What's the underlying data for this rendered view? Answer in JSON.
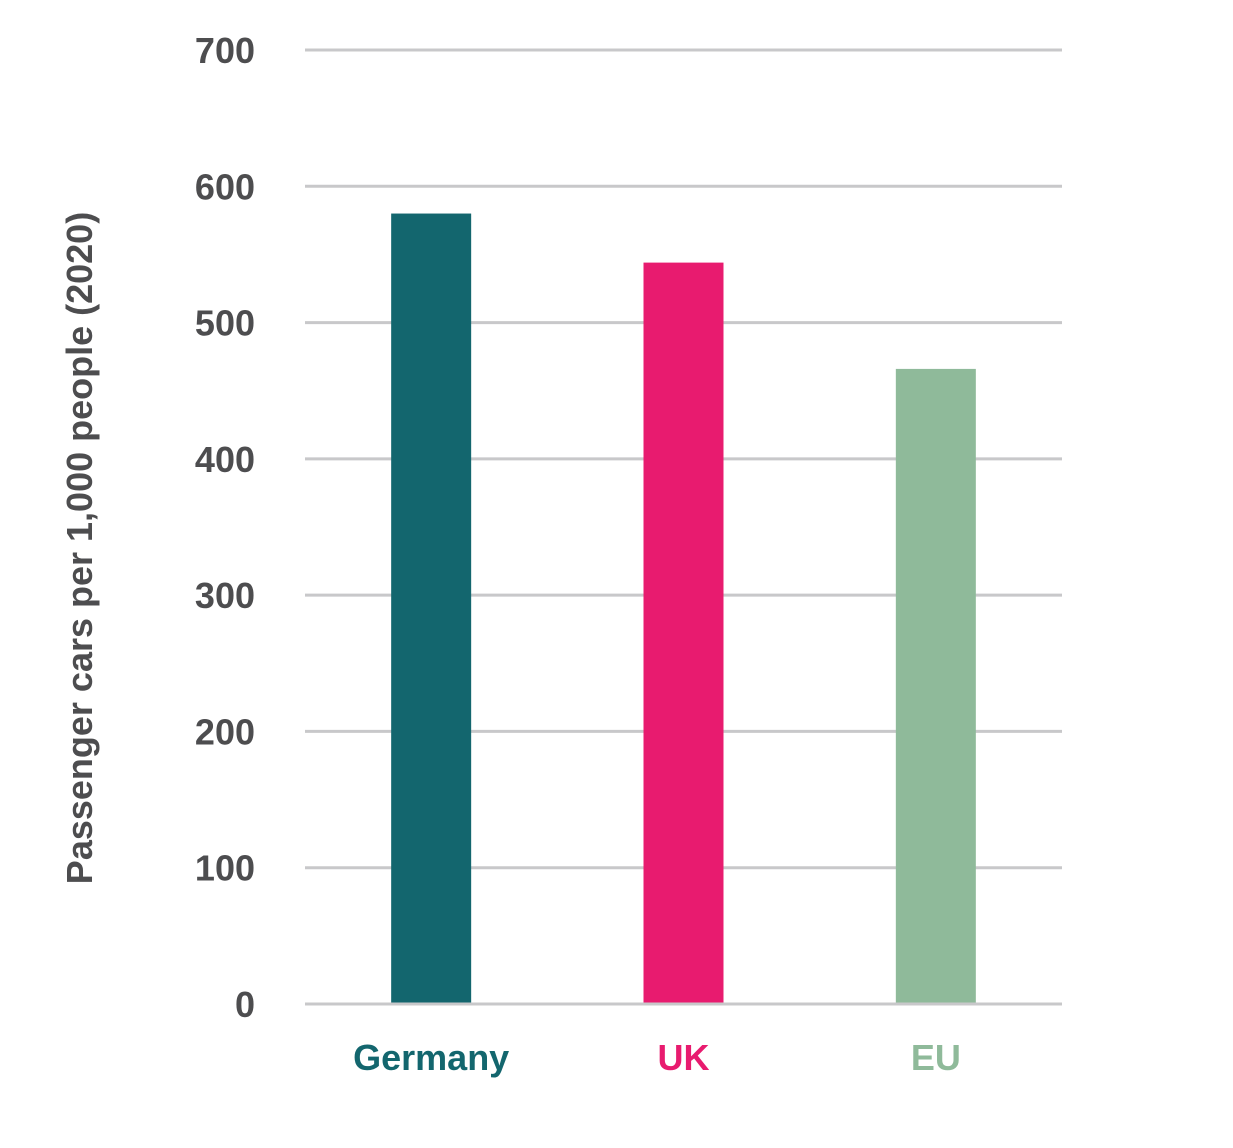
{
  "chart_data": {
    "type": "bar",
    "title": "",
    "xlabel": "",
    "ylabel": "Passenger cars per 1,000 people (2020)",
    "ylim": [
      0,
      700
    ],
    "yticks": [
      0,
      100,
      200,
      300,
      400,
      500,
      600,
      700
    ],
    "grid": true,
    "categories": [
      "Germany",
      "UK",
      "EU"
    ],
    "values": [
      580,
      544,
      466
    ],
    "colors": [
      "#13666e",
      "#e81b6f",
      "#8fba9a"
    ],
    "category_label_colors": [
      "#13666e",
      "#e81b6f",
      "#8fba9a"
    ]
  }
}
